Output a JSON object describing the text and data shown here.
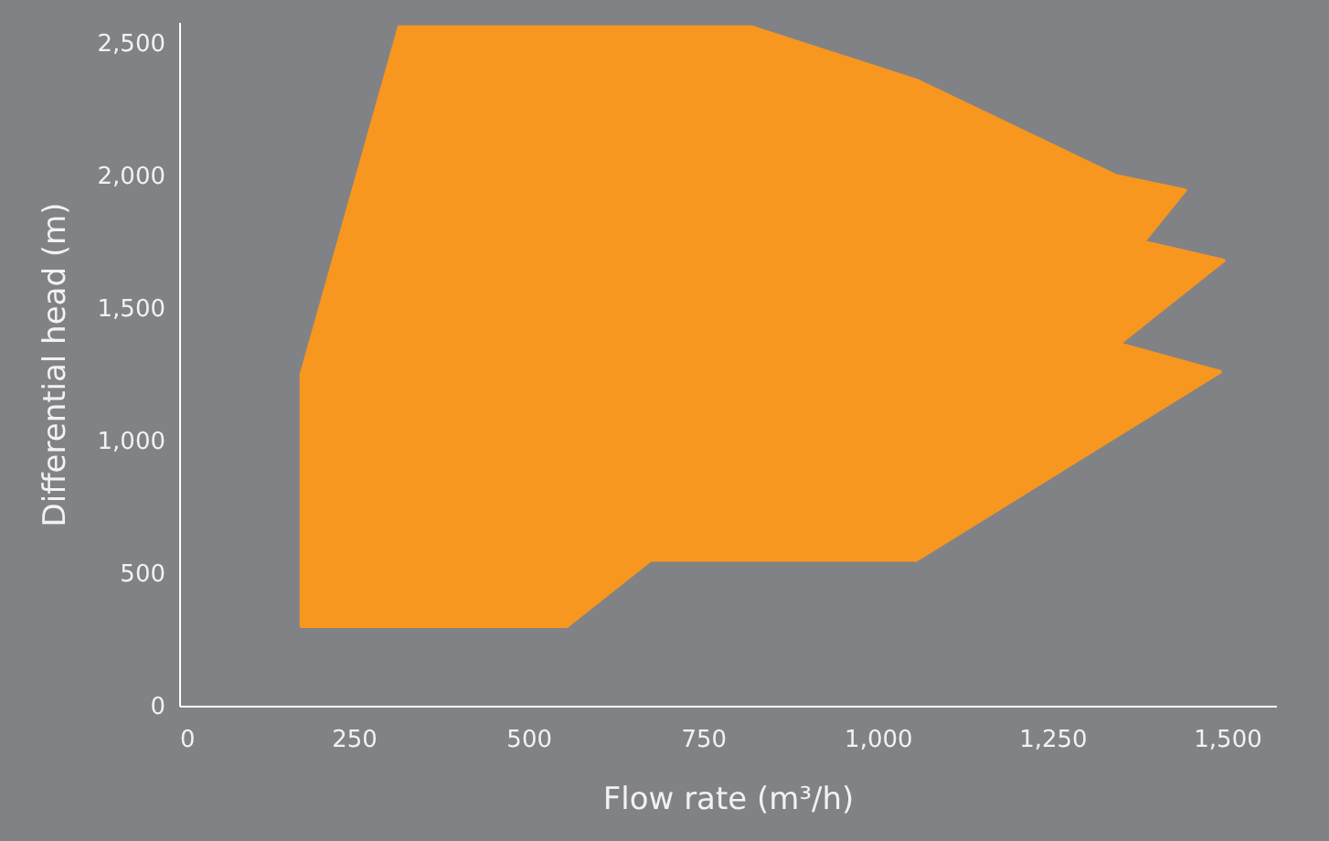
{
  "chart_data": {
    "type": "area",
    "xlabel": "Flow rate (m³/h)",
    "ylabel": "Differential head (m)",
    "xlim": [
      0,
      1570
    ],
    "xticks": [
      {
        "value": 0,
        "label": "0"
      },
      {
        "value": 250,
        "label": "250"
      },
      {
        "value": 500,
        "label": "500"
      },
      {
        "value": 750,
        "label": "750"
      },
      {
        "value": 1000,
        "label": "1,000"
      },
      {
        "value": 1250,
        "label": "1,250"
      },
      {
        "value": 1500,
        "label": "1,500"
      }
    ],
    "ylim": [
      0,
      2580
    ],
    "yticks": [
      {
        "value": 0,
        "label": "0"
      },
      {
        "value": 500,
        "label": "500"
      },
      {
        "value": 1000,
        "label": "1,000"
      },
      {
        "value": 1500,
        "label": "1,500"
      },
      {
        "value": 2000,
        "label": "2,000"
      },
      {
        "value": 2500,
        "label": "2,500"
      }
    ],
    "grid": false,
    "series": [
      {
        "color": "#f7971f",
        "x": [
          175,
          175,
          315,
          820,
          1055,
          1340,
          1440,
          1380,
          1495,
          1345,
          1490,
          1055,
          675,
          555
        ],
        "values": [
          300,
          1250,
          2560,
          2560,
          2360,
          2000,
          1945,
          1750,
          1680,
          1365,
          1260,
          550,
          550,
          300
        ]
      }
    ]
  }
}
